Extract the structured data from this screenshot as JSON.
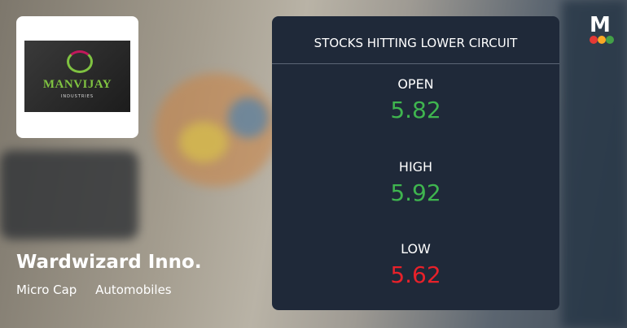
{
  "logo": {
    "main": "MANVIJAY",
    "sub": "INDUSTRIES"
  },
  "company": {
    "name": "Wardwizard Inno.",
    "tags": [
      "Micro Cap",
      "Automobiles"
    ]
  },
  "panel": {
    "title": "STOCKS HITTING LOWER CIRCUIT",
    "rows": [
      {
        "label": "OPEN",
        "value": "5.82",
        "color": "#3fb54f"
      },
      {
        "label": "HIGH",
        "value": "5.92",
        "color": "#3fb54f"
      },
      {
        "label": "LOW",
        "value": "5.62",
        "color": "#e8212a"
      }
    ]
  },
  "brand": "M"
}
